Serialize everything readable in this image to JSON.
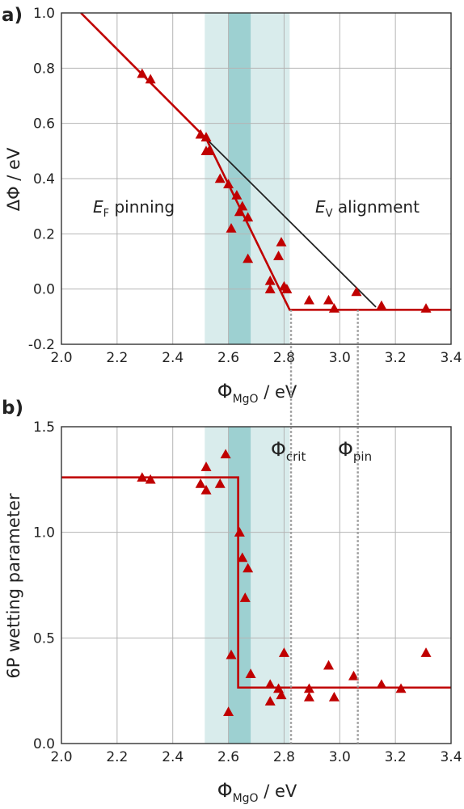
{
  "colors": {
    "marker": "#c00000",
    "fit": "#c00000",
    "ideal": "#222222",
    "band_light": "#d9ecec",
    "band_dark": "#9dd0d1",
    "guide": "#999999",
    "grid": "#b4b4b4"
  },
  "chart_data": [
    {
      "type": "scatter",
      "panel": "a)",
      "xlabel_base": "Φ",
      "xlabel_sub": "MgO",
      "xlabel_unit": " / eV",
      "ylabel": "ΔΦ / eV",
      "xlim": [
        2.0,
        3.4
      ],
      "ylim": [
        -0.2,
        1.0
      ],
      "xticks": [
        2.0,
        2.2,
        2.4,
        2.6,
        2.8,
        3.0,
        3.2,
        3.4
      ],
      "xtick_labels": [
        "2.0",
        "2.2",
        "2.4",
        "2.6",
        "2.8",
        "3.0",
        "3.2",
        "3.4"
      ],
      "yticks": [
        -0.2,
        0.0,
        0.2,
        0.4,
        0.6,
        0.8,
        1.0
      ],
      "ytick_labels": [
        "-0.2",
        "0.0",
        "0.2",
        "0.4",
        "0.6",
        "0.8",
        "1.0"
      ],
      "grid": true,
      "shaded_bands": [
        {
          "x0": 2.515,
          "x1": 2.82,
          "style": "light"
        },
        {
          "x0": 2.6,
          "x1": 2.68,
          "style": "dark"
        }
      ],
      "annotations": {
        "left": {
          "text": "E",
          "sub": "F",
          "rest": " pinning"
        },
        "right": {
          "text": "E",
          "sub": "V",
          "rest": " alignment"
        }
      },
      "points": [
        [
          2.29,
          0.78
        ],
        [
          2.32,
          0.76
        ],
        [
          2.5,
          0.56
        ],
        [
          2.52,
          0.55
        ],
        [
          2.52,
          0.5
        ],
        [
          2.53,
          0.5
        ],
        [
          2.57,
          0.4
        ],
        [
          2.6,
          0.38
        ],
        [
          2.61,
          0.22
        ],
        [
          2.63,
          0.34
        ],
        [
          2.64,
          0.28
        ],
        [
          2.65,
          0.3
        ],
        [
          2.67,
          0.26
        ],
        [
          2.67,
          0.11
        ],
        [
          2.75,
          0.03
        ],
        [
          2.75,
          0.0
        ],
        [
          2.78,
          0.12
        ],
        [
          2.79,
          0.17
        ],
        [
          2.8,
          0.01
        ],
        [
          2.81,
          0.0
        ],
        [
          2.89,
          -0.04
        ],
        [
          2.96,
          -0.04
        ],
        [
          2.98,
          -0.07
        ],
        [
          3.06,
          -0.01
        ],
        [
          3.15,
          -0.06
        ],
        [
          3.31,
          -0.07
        ]
      ],
      "fit_line": [
        [
          2.07,
          1.0
        ],
        [
          2.52,
          0.545
        ],
        [
          2.82,
          -0.075
        ],
        [
          3.4,
          -0.075
        ]
      ],
      "ideal_line": [
        [
          2.52,
          0.545
        ],
        [
          3.13,
          -0.065
        ]
      ]
    },
    {
      "type": "scatter",
      "panel": "b)",
      "xlabel_base": "Φ",
      "xlabel_sub": "MgO",
      "xlabel_unit": " / eV",
      "ylabel": "6P wetting parameter",
      "xlim": [
        2.0,
        3.4
      ],
      "ylim": [
        0.0,
        1.5
      ],
      "xticks": [
        2.0,
        2.2,
        2.4,
        2.6,
        2.8,
        3.0,
        3.2,
        3.4
      ],
      "xtick_labels": [
        "2.0",
        "2.2",
        "2.4",
        "2.6",
        "2.8",
        "3.0",
        "3.2",
        "3.4"
      ],
      "yticks": [
        0.0,
        0.5,
        1.0,
        1.5
      ],
      "ytick_labels": [
        "0.0",
        "0.5",
        "1.0",
        "1.5"
      ],
      "grid": true,
      "shaded_bands": [
        {
          "x0": 2.515,
          "x1": 2.82,
          "style": "light"
        },
        {
          "x0": 2.6,
          "x1": 2.68,
          "style": "dark"
        }
      ],
      "annotations": {
        "crit": {
          "text": "Φ",
          "sub": "crit"
        },
        "pin": {
          "text": "Φ",
          "sub": "pin"
        }
      },
      "points": [
        [
          2.29,
          1.26
        ],
        [
          2.32,
          1.25
        ],
        [
          2.5,
          1.23
        ],
        [
          2.52,
          1.31
        ],
        [
          2.52,
          1.2
        ],
        [
          2.57,
          1.23
        ],
        [
          2.59,
          1.37
        ],
        [
          2.6,
          0.15
        ],
        [
          2.61,
          0.42
        ],
        [
          2.64,
          1.0
        ],
        [
          2.65,
          0.88
        ],
        [
          2.66,
          0.69
        ],
        [
          2.67,
          0.83
        ],
        [
          2.68,
          0.33
        ],
        [
          2.75,
          0.28
        ],
        [
          2.75,
          0.2
        ],
        [
          2.78,
          0.26
        ],
        [
          2.79,
          0.23
        ],
        [
          2.8,
          0.43
        ],
        [
          2.89,
          0.26
        ],
        [
          2.89,
          0.22
        ],
        [
          2.96,
          0.37
        ],
        [
          2.98,
          0.22
        ],
        [
          3.05,
          0.32
        ],
        [
          3.15,
          0.28
        ],
        [
          3.22,
          0.26
        ],
        [
          3.31,
          0.43
        ]
      ],
      "fit_line": [
        [
          2.0,
          1.26
        ],
        [
          2.635,
          1.26
        ],
        [
          2.635,
          0.265
        ],
        [
          3.4,
          0.265
        ]
      ]
    }
  ],
  "guides": {
    "phi_crit": 2.825,
    "phi_pin": 3.065
  }
}
